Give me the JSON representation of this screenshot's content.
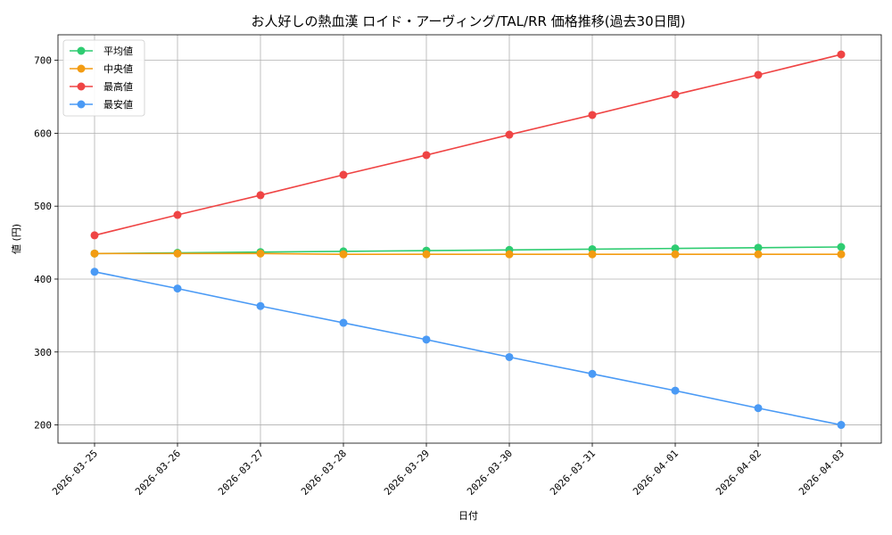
{
  "chart_data": {
    "type": "line",
    "title": "お人好しの熱血漢 ロイド・アーヴィング/TAL/RR 価格推移(過去30日間)",
    "xlabel": "日付",
    "ylabel": "値 (円)",
    "ylim": [
      175,
      735
    ],
    "yticks": [
      200,
      300,
      400,
      500,
      600,
      700
    ],
    "grid": true,
    "legend_position": "top-left",
    "categories": [
      "2026-03-25",
      "2026-03-26",
      "2026-03-27",
      "2026-03-28",
      "2026-03-29",
      "2026-03-30",
      "2026-03-31",
      "2026-04-01",
      "2026-04-02",
      "2026-04-03"
    ],
    "series": [
      {
        "name": "平均値",
        "color": "#2ecc71",
        "values": [
          435,
          436,
          437,
          438,
          439,
          440,
          441,
          442,
          443,
          444
        ]
      },
      {
        "name": "中央値",
        "color": "#f39c12",
        "values": [
          435,
          435,
          435,
          434,
          434,
          434,
          434,
          434,
          434,
          434
        ]
      },
      {
        "name": "最高値",
        "color": "#ef4444",
        "values": [
          460,
          488,
          515,
          543,
          570,
          598,
          625,
          653,
          680,
          708
        ]
      },
      {
        "name": "最安値",
        "color": "#4a9af5",
        "values": [
          410,
          387,
          363,
          340,
          317,
          293,
          270,
          247,
          223,
          200
        ]
      }
    ]
  }
}
